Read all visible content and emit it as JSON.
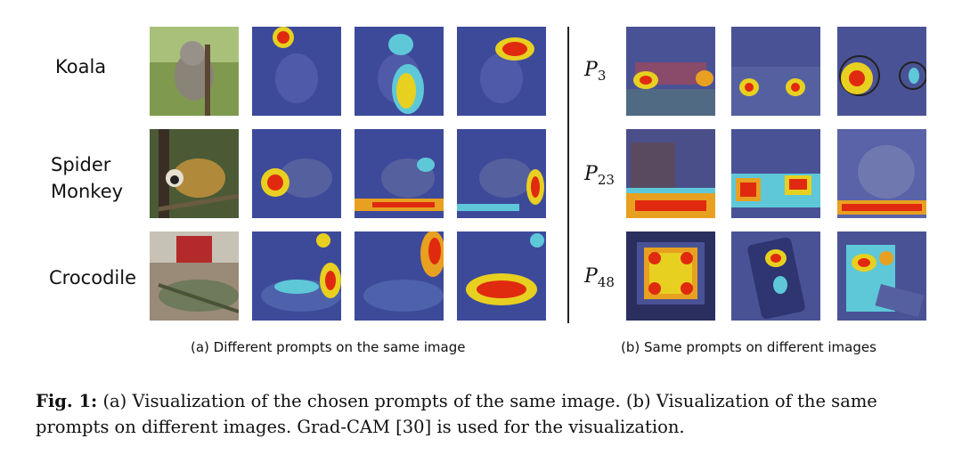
{
  "left_panel": {
    "rows": [
      {
        "label": "Koala"
      },
      {
        "label": "Spider\nMonkey"
      },
      {
        "label": "Crocodile"
      }
    ],
    "subcaption": "(a)  Different prompts on the same image"
  },
  "right_panel": {
    "prompts": [
      {
        "base": "P",
        "sub": "3"
      },
      {
        "base": "P",
        "sub": "23"
      },
      {
        "base": "P",
        "sub": "48"
      }
    ],
    "subcaption": "(b)  Same prompts on different images"
  },
  "caption": {
    "fig_label": "Fig. 1:",
    "text": "(a) Visualization of the chosen prompts of the same image. (b) Visualization of the same prompts on different images. Grad-CAM [30] is used for the visualization."
  }
}
